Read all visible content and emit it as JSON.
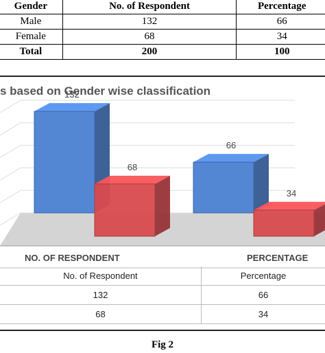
{
  "table": {
    "headers": [
      "Gender",
      "No. of Respondent",
      "Percentage"
    ],
    "rows": [
      [
        "Male",
        "132",
        "66"
      ],
      [
        "Female",
        "68",
        "34"
      ]
    ],
    "total": [
      "Total",
      "200",
      "100"
    ]
  },
  "chart_data": {
    "type": "bar",
    "title": "s based on Gender wise classification",
    "categories": [
      "NO. OF RESPONDENT",
      "PERCENTAGE"
    ],
    "series": [
      {
        "name": "",
        "values": [
          132,
          66
        ],
        "color": "#4a7fd1"
      },
      {
        "name": "",
        "values": [
          68,
          34
        ],
        "color": "#d84a4e"
      }
    ],
    "data_labels": [
      [
        "132",
        "68"
      ],
      [
        "66",
        "34"
      ]
    ],
    "ylim": [
      0,
      150
    ],
    "grid": true,
    "data_table": {
      "headers": [
        "No. of Respondent",
        "Percentage"
      ],
      "rows": [
        [
          "132",
          "66"
        ],
        [
          "68",
          "34"
        ]
      ]
    }
  },
  "caption": "Fig 2"
}
